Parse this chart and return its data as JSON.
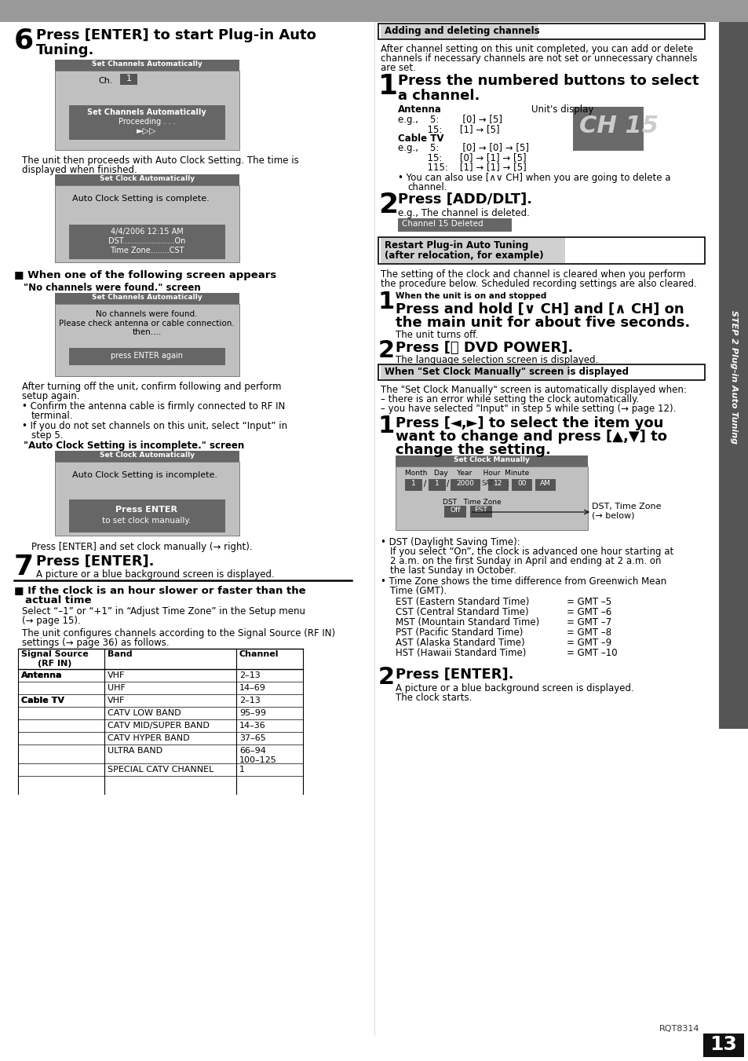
{
  "bg": "#ffffff",
  "header_gray": "#999999",
  "dark_bar": "#555555",
  "inner_bar": "#666666",
  "screen_bg": "#c0c0c0",
  "light_gray": "#d0d0d0",
  "side_bg": "#555555",
  "page_num": "13",
  "rqt": "RQT8314",
  "side_label": "STEP 2 Plug-in Auto Tuning",
  "footer_bg": "#aaaaaa",
  "footer_box": "#111111"
}
